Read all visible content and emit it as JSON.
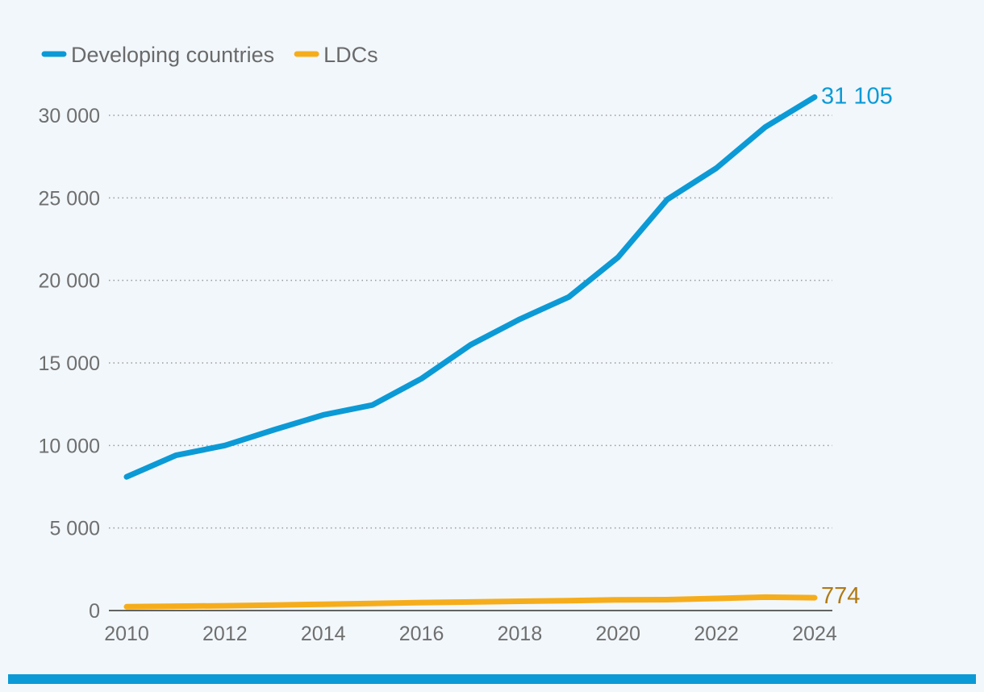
{
  "chart_data": {
    "type": "line",
    "title": "",
    "xlabel": "",
    "ylabel": "",
    "x": [
      2010,
      2011,
      2012,
      2013,
      2014,
      2015,
      2016,
      2017,
      2018,
      2019,
      2020,
      2021,
      2022,
      2023,
      2024
    ],
    "x_tick_labels": [
      "2010",
      "2012",
      "2014",
      "2016",
      "2018",
      "2020",
      "2022",
      "2024"
    ],
    "y_tick_labels": [
      "0",
      "5 000",
      "10 000",
      "15 000",
      "20 000",
      "25 000",
      "30 000"
    ],
    "ylim": [
      0,
      30000
    ],
    "grid": "horizontal dotted",
    "legend_position": "top-left",
    "series": [
      {
        "name": "Developing countries",
        "color": "#0b9ad6",
        "end_label": "31 105",
        "values": [
          8100,
          9400,
          10000,
          10950,
          11850,
          12450,
          14050,
          16100,
          17650,
          19000,
          21400,
          24900,
          26800,
          29300,
          31105
        ]
      },
      {
        "name": "LDCs",
        "color": "#f6ad1c",
        "end_label": "774",
        "label_color": "#b07a14",
        "values": [
          230,
          260,
          290,
          330,
          380,
          430,
          480,
          520,
          560,
          600,
          650,
          660,
          730,
          810,
          774
        ]
      }
    ]
  },
  "footer": {
    "bar_color": "#0b9ad6"
  }
}
